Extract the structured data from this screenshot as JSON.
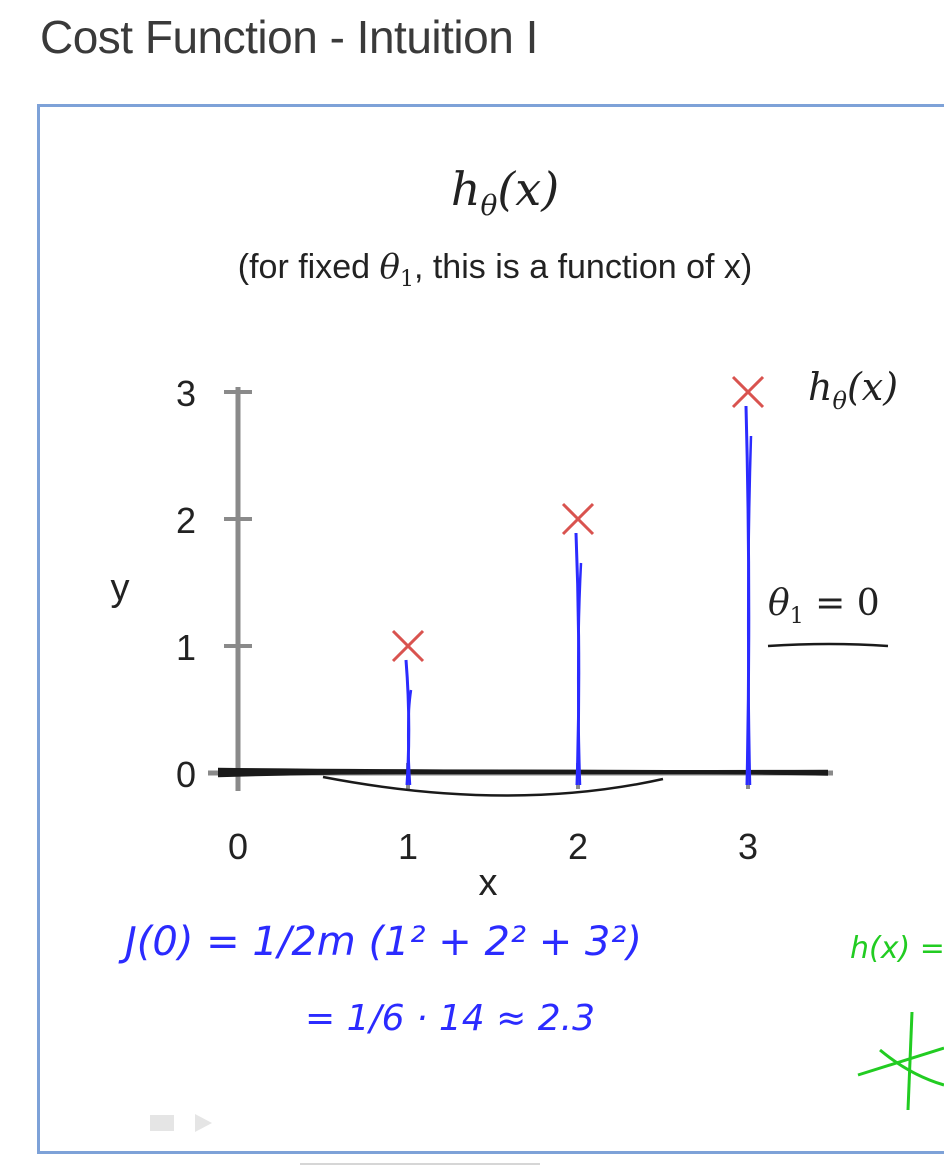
{
  "page": {
    "title": "Cost Function - Intuition I"
  },
  "slide": {
    "heading_h": "h",
    "heading_sub": "θ",
    "heading_arg": "(x)",
    "caption_pre": "(for fixed ",
    "caption_theta": "θ",
    "caption_theta_sub": "1",
    "caption_post": ", this is a function of x)",
    "legend_h": "h",
    "legend_sub": "θ",
    "legend_arg": "(x)",
    "theta_label": "θ",
    "theta_sub": "1",
    "theta_eq": " = 0",
    "handwriting_line1": "J(0) = 1/2m (1² + 2² + 3²)",
    "handwriting_line2": "= 1/6 · 14 ≈ 2.3",
    "handwriting_right": "h(x) ="
  },
  "chart_data": {
    "type": "scatter",
    "title": "",
    "xlabel": "x",
    "ylabel": "y",
    "xlim": [
      0,
      3
    ],
    "ylim": [
      0,
      3
    ],
    "x_ticks": [
      "0",
      "1",
      "2",
      "3"
    ],
    "y_ticks": [
      "0",
      "1",
      "2",
      "3"
    ],
    "series": [
      {
        "name": "",
        "marker": "x",
        "color": "#d9534f",
        "points": [
          {
            "x": 1,
            "y": 1
          },
          {
            "x": 2,
            "y": 2
          },
          {
            "x": 3,
            "y": 3
          }
        ]
      }
    ],
    "hypothesis_line": {
      "theta1": 0,
      "color": "#1a1a1a"
    },
    "residual_color": "#2b2bff",
    "handwriting_color": "#2b2bff",
    "accent_green": "#22cc22",
    "axis_color": "#8a8a8a"
  }
}
